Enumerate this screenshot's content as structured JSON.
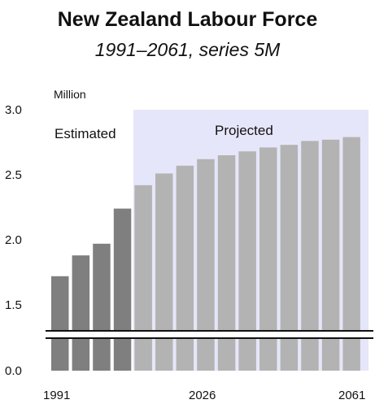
{
  "chart_data": {
    "type": "bar",
    "title": "New Zealand Labour Force",
    "subtitle": "1991–2061, series 5M",
    "ylabel": "Million",
    "ylim": [
      0.0,
      3.0
    ],
    "axis_break": {
      "from": 0.0,
      "to": 1.5
    },
    "y_ticks": [
      "3.0",
      "2.5",
      "2.0",
      "1.5",
      "0.0"
    ],
    "x_tick_labels": [
      "1991",
      "2026",
      "2061"
    ],
    "categories": [
      "1991",
      "1996",
      "2001",
      "2006",
      "2011",
      "2016",
      "2021",
      "2026",
      "2031",
      "2036",
      "2041",
      "2046",
      "2051",
      "2056",
      "2061"
    ],
    "series": [
      {
        "name": "Estimated",
        "values": [
          1.72,
          1.88,
          1.97,
          2.24,
          null,
          null,
          null,
          null,
          null,
          null,
          null,
          null,
          null,
          null,
          null
        ]
      },
      {
        "name": "Projected",
        "values": [
          null,
          null,
          null,
          null,
          2.42,
          2.51,
          2.57,
          2.62,
          2.65,
          2.68,
          2.71,
          2.73,
          2.76,
          2.77,
          2.79
        ]
      }
    ],
    "region_labels": [
      "Estimated",
      "Projected"
    ],
    "colors": {
      "estimated_bar": "#7f7f7f",
      "projected_bar": "#b3b3b3",
      "estimated_bg": "#ffffff",
      "projected_bg": "#e6e6fa",
      "tick_text": "#111111"
    },
    "grid": false,
    "legend": "none"
  }
}
